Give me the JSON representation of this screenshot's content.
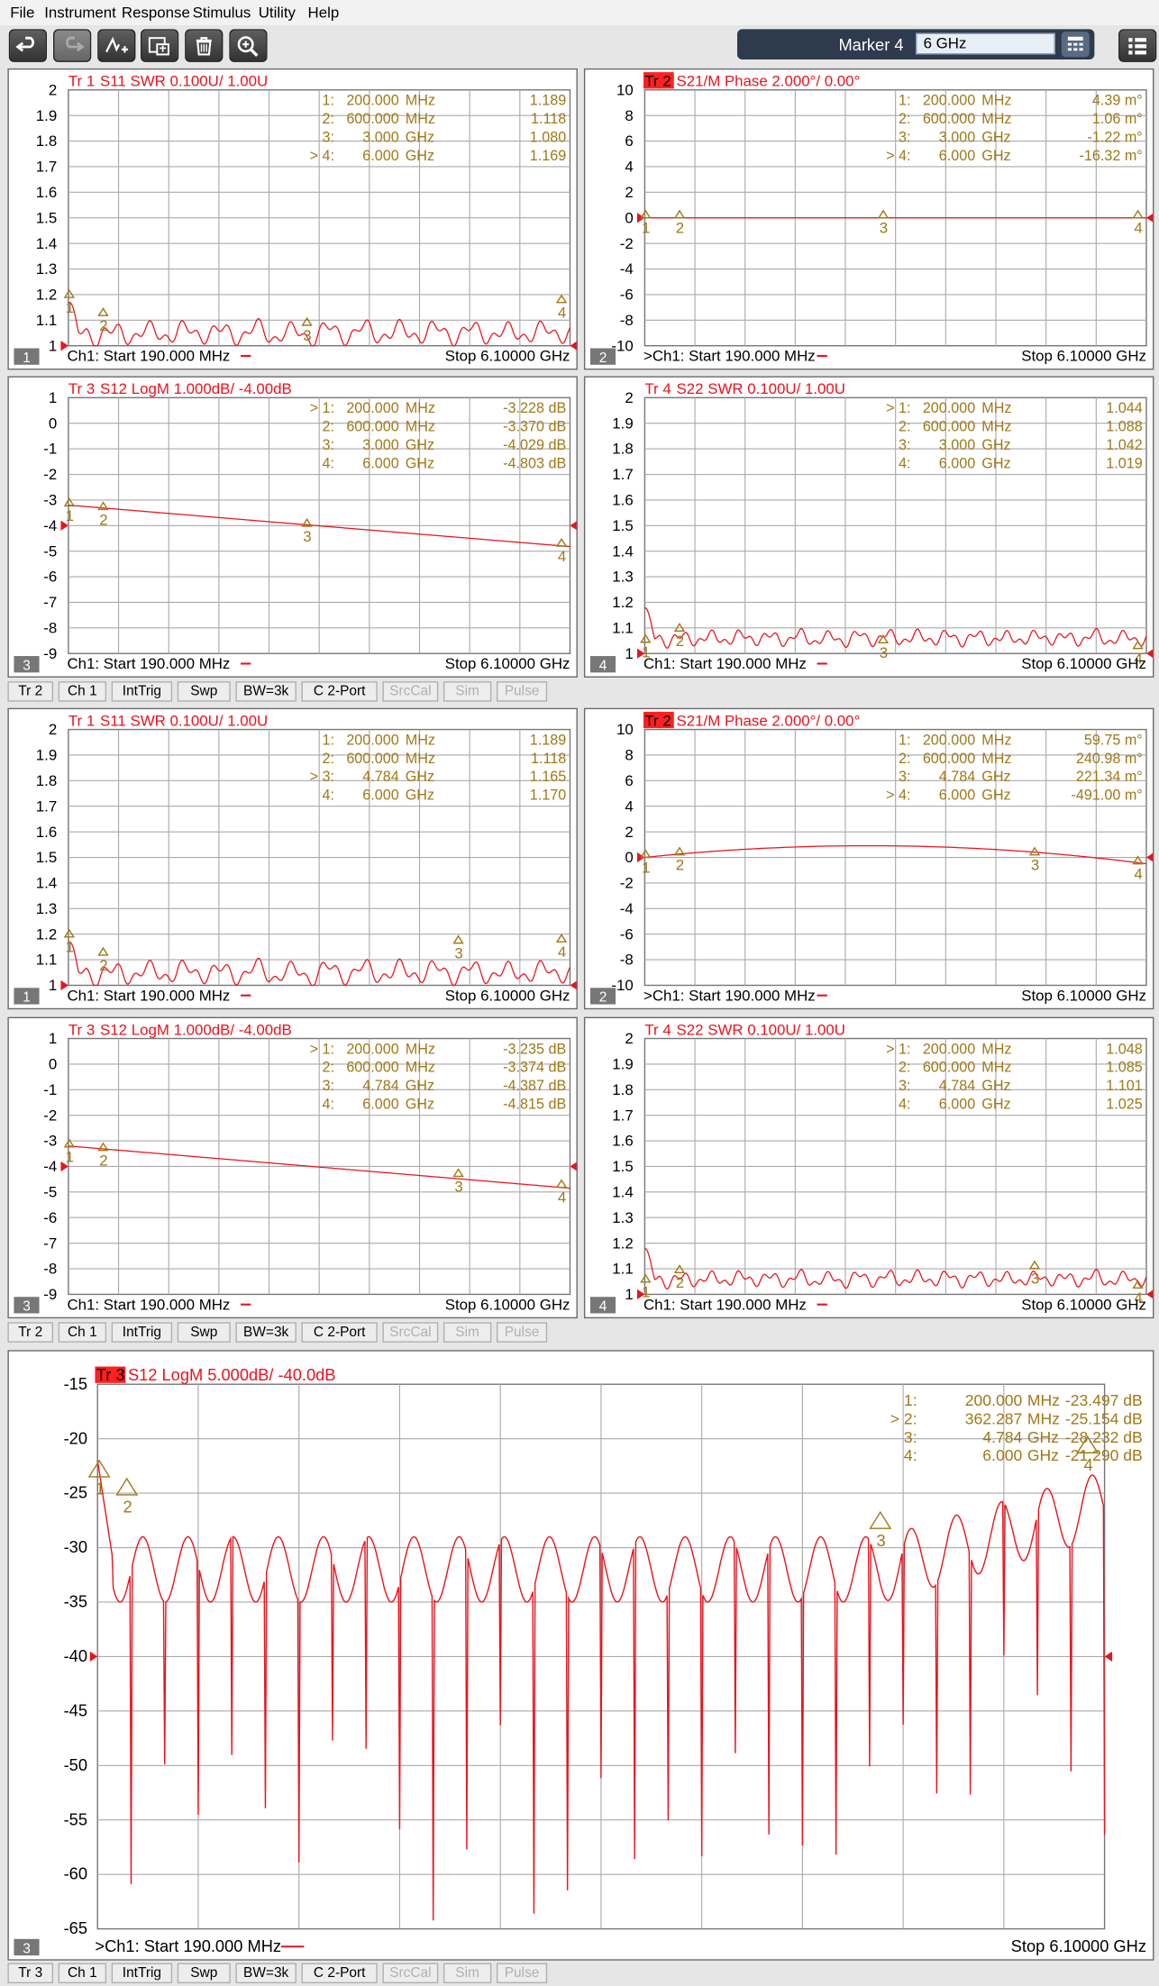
{
  "menu": [
    "File",
    "Instrument",
    "Response",
    "Stimulus",
    "Utility",
    "Help"
  ],
  "toolbar": {
    "buttons": [
      "undo-icon",
      "redo-icon",
      "marker-add-icon",
      "copy-data-icon",
      "trash-icon",
      "zoom-icon"
    ],
    "marker_label": "Marker 4",
    "marker_value": "6 GHz"
  },
  "colors": {
    "trace": "#e8141e",
    "marker": "#a07818",
    "grid": "#aaaaaa",
    "active_tr_bg": "#ff2020"
  },
  "statusbars": [
    {
      "items": [
        "Tr 2",
        "Ch 1",
        "IntTrig",
        "Swp",
        "BW=3k",
        "C  2-Port",
        "SrcCal",
        "Sim",
        "Pulse"
      ]
    },
    {
      "items": [
        "Tr 2",
        "Ch 1",
        "IntTrig",
        "Swp",
        "BW=3k",
        "C  2-Port",
        "SrcCal",
        "Sim",
        "Pulse"
      ]
    },
    {
      "items": [
        "Tr 3",
        "Ch 1",
        "IntTrig",
        "Swp",
        "BW=3k",
        "C  2-Port",
        "SrcCal",
        "Sim",
        "Pulse"
      ]
    }
  ],
  "panels": [
    {
      "num": "1",
      "tr": "Tr  1",
      "desc": "  S11 SWR 0.100U/  1.00U",
      "active": false,
      "ylabels": [
        "2",
        "1.9",
        "1.8",
        "1.7",
        "1.6",
        "1.5",
        "1.4",
        "1.3",
        "1.2",
        "1.1",
        "1"
      ],
      "yscale": {
        "top": 2,
        "bottom": 1
      },
      "markers": [
        {
          "sel": false,
          "idx": "1:",
          "freq": "200.000",
          "unit": "MHz",
          "val": "1.189"
        },
        {
          "sel": false,
          "idx": "2:",
          "freq": "600.000",
          "unit": "MHz",
          "val": "1.118"
        },
        {
          "sel": false,
          "idx": "3:",
          "freq": "3.000",
          "unit": "GHz",
          "val": "1.080"
        },
        {
          "sel": true,
          "idx": "4:",
          "freq": "6.000",
          "unit": "GHz",
          "val": "1.169"
        }
      ],
      "marker_points": [
        [
          0.2,
          1.189,
          "1"
        ],
        [
          0.6,
          1.118,
          "2"
        ],
        [
          3.0,
          1.08,
          "3"
        ],
        [
          6.0,
          1.169,
          "4"
        ]
      ],
      "ref": 1,
      "footer": {
        "start": "Ch1:  Start   190.000 MHz",
        "stop": "Stop  6.10000 GHz"
      },
      "trace": {
        "kind": "ripple",
        "base": 1.05,
        "amp": 0.06,
        "freq": 28
      }
    },
    {
      "num": "2",
      "tr": "Tr  2",
      "desc": "  S21/M Phase 2.000°/  0.00°",
      "active": true,
      "ylabels": [
        "10",
        "8",
        "6",
        "4",
        "2",
        "0",
        "-2",
        "-4",
        "-6",
        "-8",
        "-10"
      ],
      "yscale": {
        "top": 10,
        "bottom": -10
      },
      "markers": [
        {
          "sel": false,
          "idx": "1:",
          "freq": "200.000",
          "unit": "MHz",
          "val": "4.39 m°"
        },
        {
          "sel": false,
          "idx": "2:",
          "freq": "600.000",
          "unit": "MHz",
          "val": "1.06 m°"
        },
        {
          "sel": false,
          "idx": "3:",
          "freq": "3.000",
          "unit": "GHz",
          "val": "-1.22 m°"
        },
        {
          "sel": true,
          "idx": "4:",
          "freq": "6.000",
          "unit": "GHz",
          "val": "-16.32 m°"
        }
      ],
      "marker_points": [
        [
          0.2,
          0,
          "1"
        ],
        [
          0.6,
          0,
          "2"
        ],
        [
          3.0,
          0,
          "3"
        ],
        [
          6.0,
          0,
          "4"
        ]
      ],
      "ref": 0,
      "footer": {
        "start": ">Ch1:  Start   190.000 MHz",
        "stop": "Stop  6.10000 GHz"
      },
      "trace": {
        "kind": "flat",
        "value": 0
      }
    },
    {
      "num": "3",
      "tr": "Tr  3",
      "desc": "  S12 LogM 1.000dB/  -4.00dB",
      "active": false,
      "ylabels": [
        "1",
        "0",
        "-1",
        "-2",
        "-3",
        "-4",
        "-5",
        "-6",
        "-7",
        "-8",
        "-9"
      ],
      "yscale": {
        "top": 1,
        "bottom": -9
      },
      "markers": [
        {
          "sel": true,
          "idx": "1:",
          "freq": "200.000",
          "unit": "MHz",
          "val": "-3.228 dB"
        },
        {
          "sel": false,
          "idx": "2:",
          "freq": "600.000",
          "unit": "MHz",
          "val": "-3.370 dB"
        },
        {
          "sel": false,
          "idx": "3:",
          "freq": "3.000",
          "unit": "GHz",
          "val": "-4.029 dB"
        },
        {
          "sel": false,
          "idx": "4:",
          "freq": "6.000",
          "unit": "GHz",
          "val": "-4.803 dB"
        }
      ],
      "marker_points": [
        [
          0.2,
          -3.228,
          "1"
        ],
        [
          0.6,
          -3.37,
          "2"
        ],
        [
          3.0,
          -4.029,
          "3"
        ],
        [
          6.0,
          -4.803,
          "4"
        ]
      ],
      "ref": -4,
      "footer": {
        "start": "Ch1:  Start   190.000 MHz",
        "stop": "Stop  6.10000 GHz"
      },
      "trace": {
        "kind": "line",
        "y0": -3.2,
        "y1": -4.82
      }
    },
    {
      "num": "4",
      "tr": "Tr  4",
      "desc": "  S22 SWR 0.100U/  1.00U",
      "active": false,
      "ylabels": [
        "2",
        "1.9",
        "1.8",
        "1.7",
        "1.6",
        "1.5",
        "1.4",
        "1.3",
        "1.2",
        "1.1",
        "1"
      ],
      "yscale": {
        "top": 2,
        "bottom": 1
      },
      "markers": [
        {
          "sel": true,
          "idx": "1:",
          "freq": "200.000",
          "unit": "MHz",
          "val": "1.044"
        },
        {
          "sel": false,
          "idx": "2:",
          "freq": "600.000",
          "unit": "MHz",
          "val": "1.088"
        },
        {
          "sel": false,
          "idx": "3:",
          "freq": "3.000",
          "unit": "GHz",
          "val": "1.042"
        },
        {
          "sel": false,
          "idx": "4:",
          "freq": "6.000",
          "unit": "GHz",
          "val": "1.019"
        }
      ],
      "marker_points": [
        [
          0.2,
          1.044,
          "1"
        ],
        [
          0.6,
          1.088,
          "2"
        ],
        [
          3.0,
          1.042,
          "3"
        ],
        [
          6.0,
          1.019,
          "4"
        ]
      ],
      "ref": 1,
      "footer": {
        "start": "Ch1:  Start   190.000 MHz",
        "stop": "Stop  6.10000 GHz"
      },
      "trace": {
        "kind": "ripple",
        "base": 1.06,
        "amp": 0.04,
        "freq": 34
      }
    },
    {
      "num": "1",
      "tr": "Tr  1",
      "desc": "  S11 SWR 0.100U/  1.00U",
      "active": false,
      "ylabels": [
        "2",
        "1.9",
        "1.8",
        "1.7",
        "1.6",
        "1.5",
        "1.4",
        "1.3",
        "1.2",
        "1.1",
        "1"
      ],
      "yscale": {
        "top": 2,
        "bottom": 1
      },
      "markers": [
        {
          "sel": false,
          "idx": "1:",
          "freq": "200.000",
          "unit": "MHz",
          "val": "1.189"
        },
        {
          "sel": false,
          "idx": "2:",
          "freq": "600.000",
          "unit": "MHz",
          "val": "1.118"
        },
        {
          "sel": true,
          "idx": "3:",
          "freq": "4.784",
          "unit": "GHz",
          "val": "1.165"
        },
        {
          "sel": false,
          "idx": "4:",
          "freq": "6.000",
          "unit": "GHz",
          "val": "1.170"
        }
      ],
      "marker_points": [
        [
          0.2,
          1.189,
          "1"
        ],
        [
          0.6,
          1.118,
          "2"
        ],
        [
          4.784,
          1.165,
          "3"
        ],
        [
          6.0,
          1.17,
          "4"
        ]
      ],
      "ref": 1,
      "footer": {
        "start": "Ch1:  Start   190.000 MHz",
        "stop": "Stop  6.10000 GHz"
      },
      "trace": {
        "kind": "ripple",
        "base": 1.05,
        "amp": 0.06,
        "freq": 28
      }
    },
    {
      "num": "2",
      "tr": "Tr  2",
      "desc": "  S21/M Phase 2.000°/  0.00°",
      "active": true,
      "ylabels": [
        "10",
        "8",
        "6",
        "4",
        "2",
        "0",
        "-2",
        "-4",
        "-6",
        "-8",
        "-10"
      ],
      "yscale": {
        "top": 10,
        "bottom": -10
      },
      "markers": [
        {
          "sel": false,
          "idx": "1:",
          "freq": "200.000",
          "unit": "MHz",
          "val": "59.75 m°"
        },
        {
          "sel": false,
          "idx": "2:",
          "freq": "600.000",
          "unit": "MHz",
          "val": "240.98 m°"
        },
        {
          "sel": false,
          "idx": "3:",
          "freq": "4.784",
          "unit": "GHz",
          "val": "221.34 m°"
        },
        {
          "sel": true,
          "idx": "4:",
          "freq": "6.000",
          "unit": "GHz",
          "val": "-491.00 m°"
        }
      ],
      "marker_points": [
        [
          0.2,
          0,
          "1"
        ],
        [
          0.6,
          0.2,
          "2"
        ],
        [
          4.784,
          0.2,
          "3"
        ],
        [
          6.0,
          -0.5,
          "4"
        ]
      ],
      "ref": 0,
      "footer": {
        "start": ">Ch1:  Start   190.000 MHz",
        "stop": "Stop  6.10000 GHz"
      },
      "trace": {
        "kind": "arc",
        "y0": 0,
        "ymid": 0.9,
        "y1": -0.5
      }
    },
    {
      "num": "3",
      "tr": "Tr  3",
      "desc": "  S12 LogM 1.000dB/  -4.00dB",
      "active": false,
      "ylabels": [
        "1",
        "0",
        "-1",
        "-2",
        "-3",
        "-4",
        "-5",
        "-6",
        "-7",
        "-8",
        "-9"
      ],
      "yscale": {
        "top": 1,
        "bottom": -9
      },
      "markers": [
        {
          "sel": true,
          "idx": "1:",
          "freq": "200.000",
          "unit": "MHz",
          "val": "-3.235 dB"
        },
        {
          "sel": false,
          "idx": "2:",
          "freq": "600.000",
          "unit": "MHz",
          "val": "-3.374 dB"
        },
        {
          "sel": false,
          "idx": "3:",
          "freq": "4.784",
          "unit": "GHz",
          "val": "-4.387 dB"
        },
        {
          "sel": false,
          "idx": "4:",
          "freq": "6.000",
          "unit": "GHz",
          "val": "-4.815 dB"
        }
      ],
      "marker_points": [
        [
          0.2,
          -3.235,
          "1"
        ],
        [
          0.6,
          -3.374,
          "2"
        ],
        [
          4.784,
          -4.387,
          "3"
        ],
        [
          6.0,
          -4.815,
          "4"
        ]
      ],
      "ref": -4,
      "footer": {
        "start": "Ch1:  Start   190.000 MHz",
        "stop": "Stop  6.10000 GHz"
      },
      "trace": {
        "kind": "line",
        "y0": -3.2,
        "y1": -4.85
      }
    },
    {
      "num": "4",
      "tr": "Tr  4",
      "desc": "  S22 SWR 0.100U/  1.00U",
      "active": false,
      "ylabels": [
        "2",
        "1.9",
        "1.8",
        "1.7",
        "1.6",
        "1.5",
        "1.4",
        "1.3",
        "1.2",
        "1.1",
        "1"
      ],
      "yscale": {
        "top": 2,
        "bottom": 1
      },
      "markers": [
        {
          "sel": true,
          "idx": "1:",
          "freq": "200.000",
          "unit": "MHz",
          "val": "1.048"
        },
        {
          "sel": false,
          "idx": "2:",
          "freq": "600.000",
          "unit": "MHz",
          "val": "1.085"
        },
        {
          "sel": false,
          "idx": "3:",
          "freq": "4.784",
          "unit": "GHz",
          "val": "1.101"
        },
        {
          "sel": false,
          "idx": "4:",
          "freq": "6.000",
          "unit": "GHz",
          "val": "1.025"
        }
      ],
      "marker_points": [
        [
          0.2,
          1.048,
          "1"
        ],
        [
          0.6,
          1.085,
          "2"
        ],
        [
          4.784,
          1.101,
          "3"
        ],
        [
          6.0,
          1.025,
          "4"
        ]
      ],
      "ref": 1,
      "footer": {
        "start": "Ch1:  Start   190.000 MHz",
        "stop": "Stop  6.10000 GHz"
      },
      "trace": {
        "kind": "ripple",
        "base": 1.06,
        "amp": 0.04,
        "freq": 34
      }
    },
    {
      "num": "3",
      "tr": "Tr  3",
      "desc": "  S12 LogM 5.000dB/  -40.0dB",
      "active": true,
      "ylabels": [
        "-15",
        "-20",
        "-25",
        "-30",
        "-35",
        "-40",
        "-45",
        "-50",
        "-55",
        "-60",
        "-65"
      ],
      "yscale": {
        "top": -15,
        "bottom": -65
      },
      "markers": [
        {
          "sel": false,
          "idx": "1:",
          "freq": "200.000",
          "unit": "MHz",
          "val": "-23.497 dB"
        },
        {
          "sel": true,
          "idx": "2:",
          "freq": "362.287",
          "unit": "MHz",
          "val": "-25.154 dB"
        },
        {
          "sel": false,
          "idx": "3:",
          "freq": "4.784",
          "unit": "GHz",
          "val": "-28.232 dB"
        },
        {
          "sel": false,
          "idx": "4:",
          "freq": "6.000",
          "unit": "GHz",
          "val": "-21.290 dB"
        }
      ],
      "marker_points": [
        [
          0.2,
          -23.497,
          "1"
        ],
        [
          0.362,
          -25.154,
          "2"
        ],
        [
          4.784,
          -28.232,
          "3"
        ],
        [
          6.0,
          -21.29,
          "4"
        ]
      ],
      "ref": -40,
      "footer": {
        "start": ">Ch1:  Start   190.000 MHz",
        "stop": "Stop  6.10000 GHz"
      },
      "trace": {
        "kind": "notches"
      }
    }
  ]
}
